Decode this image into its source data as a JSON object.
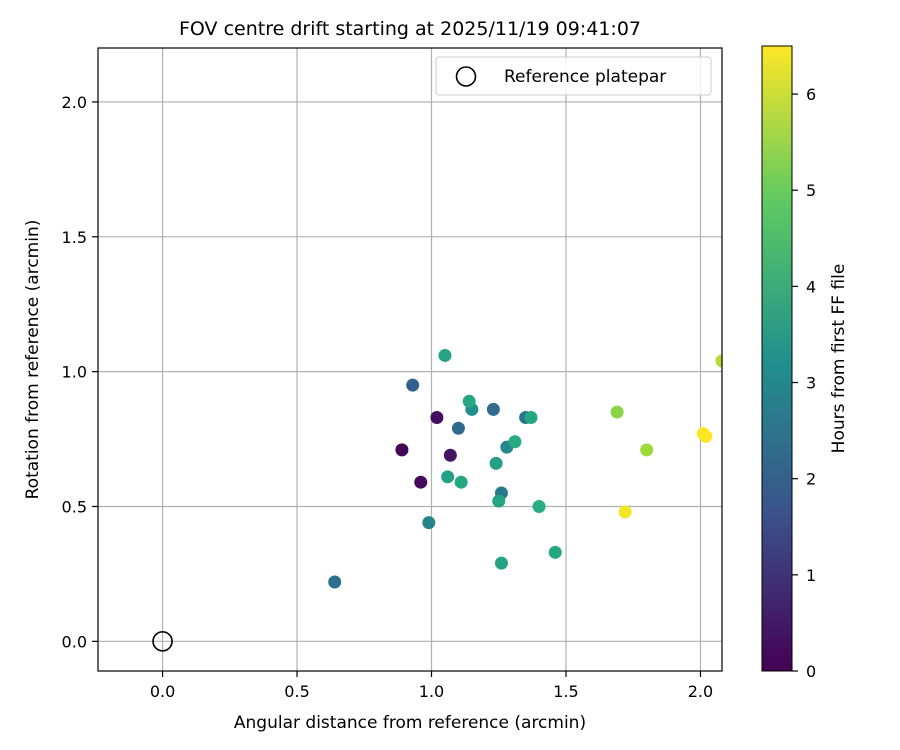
{
  "chart_data": {
    "type": "scatter",
    "title": "FOV centre drift starting at 2025/11/19 09:41:07",
    "xlabel": "Angular distance from reference (arcmin)",
    "ylabel": "Rotation from reference (arcmin)",
    "xlim": [
      -0.24,
      2.08
    ],
    "ylim": [
      -0.11,
      2.2
    ],
    "xticks": [
      0.0,
      0.5,
      1.0,
      1.5,
      2.0
    ],
    "yticks": [
      0.0,
      0.5,
      1.0,
      1.5,
      2.0
    ],
    "xtick_labels": [
      "0.0",
      "0.5",
      "1.0",
      "1.5",
      "2.0"
    ],
    "ytick_labels": [
      "0.0",
      "0.5",
      "1.0",
      "1.5",
      "2.0"
    ],
    "grid": true,
    "legend": {
      "position": "top-right",
      "entries": [
        {
          "label": "Reference platepar",
          "marker": "open-circle",
          "color": "#000000"
        }
      ]
    },
    "reference_point": {
      "x": 0.0,
      "y": 0.0
    },
    "colorbar": {
      "label": "Hours from first FF file",
      "range": [
        0,
        6.5
      ],
      "ticks": [
        0,
        1,
        2,
        3,
        4,
        5,
        6
      ],
      "tick_labels": [
        "0",
        "1",
        "2",
        "3",
        "4",
        "5",
        "6"
      ],
      "colormap": "viridis"
    },
    "points": [
      {
        "x": 0.89,
        "y": 0.71,
        "h": 0.1
      },
      {
        "x": 0.96,
        "y": 0.59,
        "h": 0.2
      },
      {
        "x": 1.02,
        "y": 0.83,
        "h": 0.3
      },
      {
        "x": 1.07,
        "y": 0.69,
        "h": 0.4
      },
      {
        "x": 0.93,
        "y": 0.95,
        "h": 2.0
      },
      {
        "x": 1.1,
        "y": 0.79,
        "h": 2.2
      },
      {
        "x": 0.64,
        "y": 0.22,
        "h": 2.4
      },
      {
        "x": 1.23,
        "y": 0.86,
        "h": 2.3
      },
      {
        "x": 1.26,
        "y": 0.55,
        "h": 2.6
      },
      {
        "x": 1.35,
        "y": 0.83,
        "h": 2.5
      },
      {
        "x": 0.99,
        "y": 0.44,
        "h": 2.9
      },
      {
        "x": 1.28,
        "y": 0.72,
        "h": 3.0
      },
      {
        "x": 1.15,
        "y": 0.86,
        "h": 3.2
      },
      {
        "x": 1.05,
        "y": 1.06,
        "h": 3.8
      },
      {
        "x": 1.14,
        "y": 0.89,
        "h": 3.9
      },
      {
        "x": 1.06,
        "y": 0.61,
        "h": 3.7
      },
      {
        "x": 1.11,
        "y": 0.59,
        "h": 3.9
      },
      {
        "x": 1.24,
        "y": 0.66,
        "h": 3.7
      },
      {
        "x": 1.25,
        "y": 0.52,
        "h": 3.8
      },
      {
        "x": 1.31,
        "y": 0.74,
        "h": 4.0
      },
      {
        "x": 1.37,
        "y": 0.83,
        "h": 3.9
      },
      {
        "x": 1.4,
        "y": 0.5,
        "h": 4.1
      },
      {
        "x": 1.26,
        "y": 0.29,
        "h": 3.8
      },
      {
        "x": 1.46,
        "y": 0.33,
        "h": 3.9
      },
      {
        "x": 1.69,
        "y": 0.85,
        "h": 5.4
      },
      {
        "x": 1.8,
        "y": 0.71,
        "h": 5.6
      },
      {
        "x": 1.72,
        "y": 0.48,
        "h": 6.4
      },
      {
        "x": 2.01,
        "y": 0.77,
        "h": 6.5
      },
      {
        "x": 2.02,
        "y": 0.76,
        "h": 6.5
      },
      {
        "x": 2.08,
        "y": 1.04,
        "h": 5.8
      }
    ]
  }
}
